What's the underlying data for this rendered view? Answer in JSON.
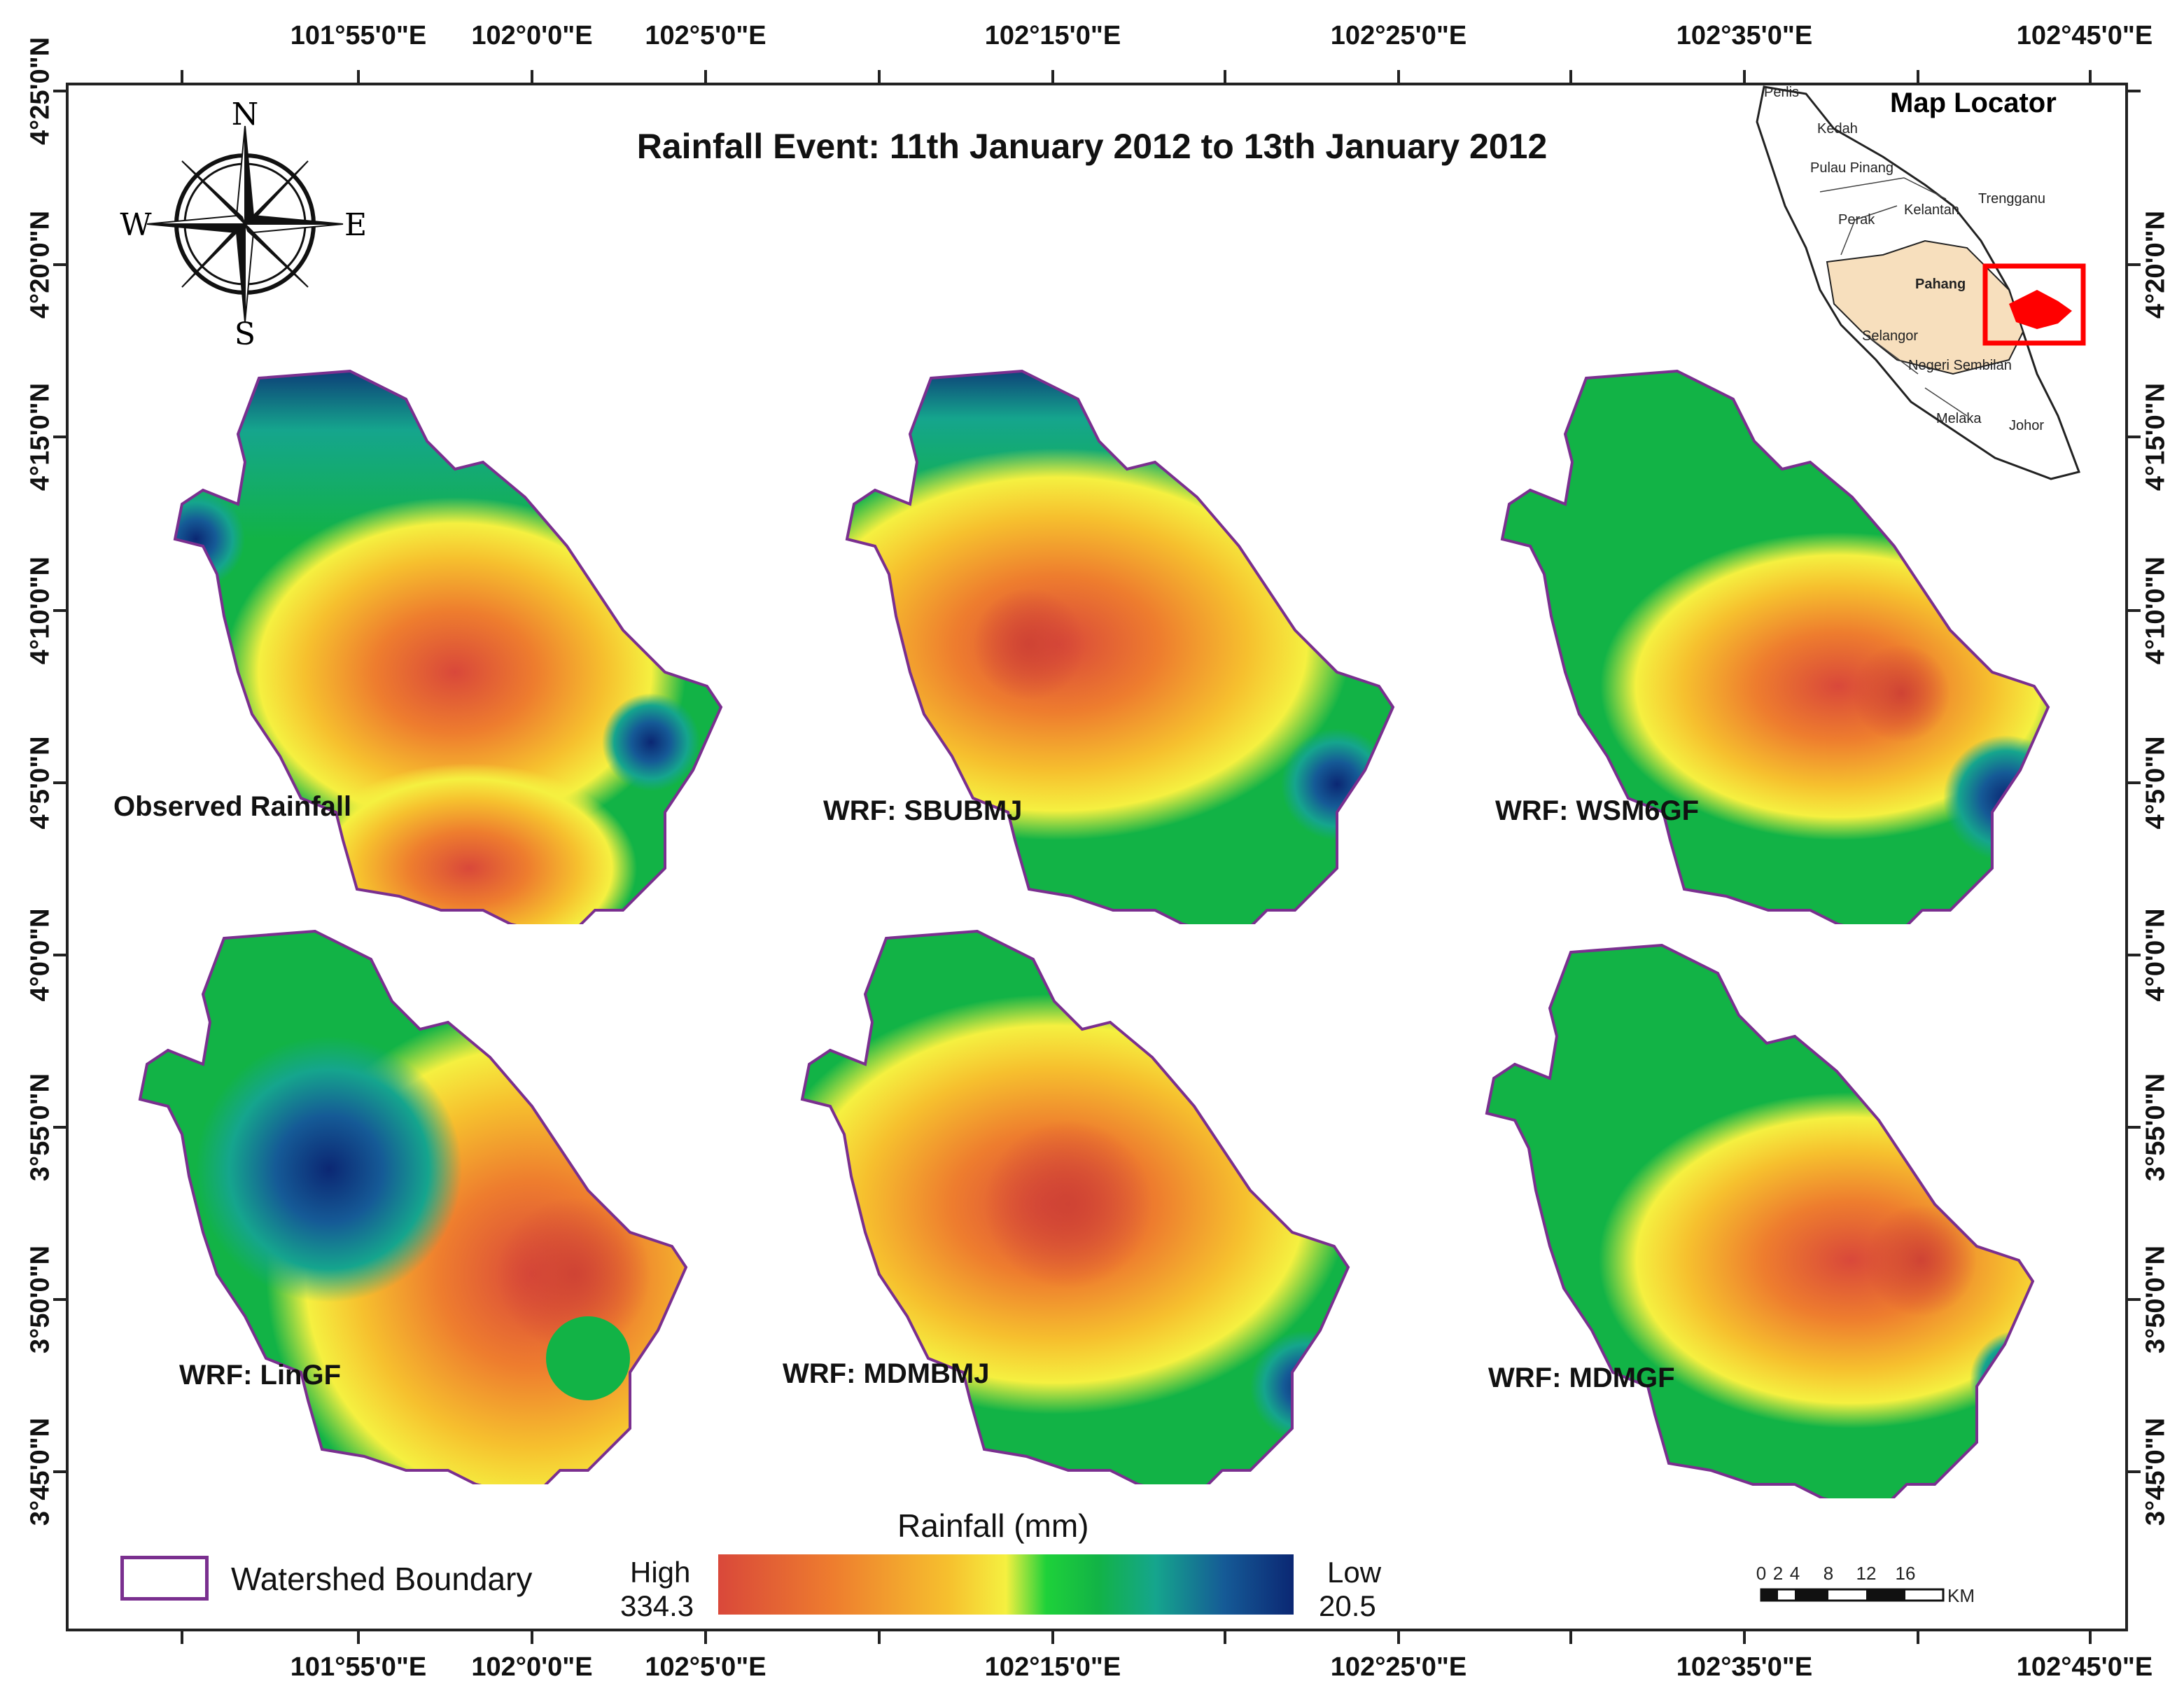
{
  "title": "Rainfall Event: 11th January 2012 to 13th January 2012",
  "axes": {
    "top_labels": [
      "101°55'0\"E",
      "102°0'0\"E",
      "102°5'0\"E",
      "102°15'0\"E",
      "102°25'0\"E",
      "102°35'0\"E",
      "102°45'0\"E"
    ],
    "bottom_labels": [
      "101°55'0\"E",
      "102°0'0\"E",
      "102°5'0\"E",
      "102°15'0\"E",
      "102°25'0\"E",
      "102°35'0\"E",
      "102°45'0\"E"
    ],
    "left_labels": [
      "4°25'0\"N",
      "4°20'0\"N",
      "4°15'0\"N",
      "4°10'0\"N",
      "4°5'0\"N",
      "4°0'0\"N",
      "3°55'0\"N",
      "3°50'0\"N",
      "3°45'0\"N"
    ],
    "right_labels": [
      "4°20'0\"N",
      "4°15'0\"N",
      "4°10'0\"N",
      "4°5'0\"N",
      "4°0'0\"N",
      "3°55'0\"N",
      "3°50'0\"N",
      "3°45'0\"N"
    ]
  },
  "compass": {
    "n": "N",
    "s": "S",
    "e": "E",
    "w": "W"
  },
  "panels": [
    {
      "label": "Observed Rainfall"
    },
    {
      "label": "WRF: SBUBMJ"
    },
    {
      "label": "WRF: WSM6GF"
    },
    {
      "label": "WRF: LinGF"
    },
    {
      "label": "WRF: MDMBMJ"
    },
    {
      "label": "WRF: MDMGF"
    }
  ],
  "locator": {
    "title": "Map Locator",
    "states": [
      "Perlis",
      "Kedah",
      "Pulau Pinang",
      "Perak",
      "Kelantan",
      "Trengganu",
      "Pahang",
      "Selangor",
      "Negeri Sembilan",
      "Melaka",
      "Johor"
    ],
    "highlight_color": "#f7dfbd",
    "marker_color": "#ff0000"
  },
  "legend": {
    "boundary_label": "Watershed Boundary",
    "boundary_color": "#7a2f8f",
    "colorbar_title": "Rainfall (mm)",
    "high_label": "High",
    "high_value": "334.3",
    "low_label": "Low",
    "low_value": "20.5"
  },
  "scalebar": {
    "ticks": [
      "0",
      "2",
      "4",
      "8",
      "12",
      "16"
    ],
    "unit": "KM"
  },
  "colors": {
    "high": "#d9483a",
    "mid": "#f5f040",
    "green": "#12b346",
    "low": "#0b2773"
  }
}
